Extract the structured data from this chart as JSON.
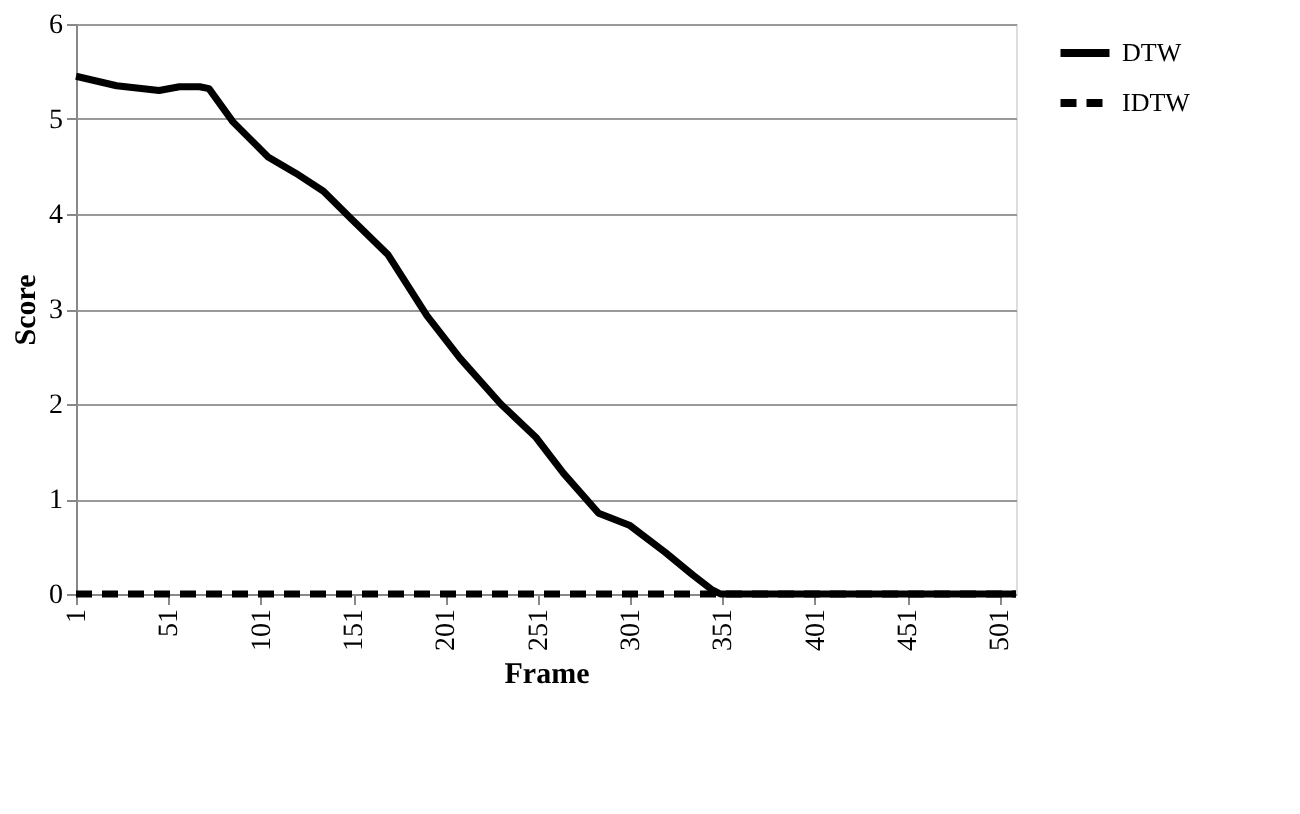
{
  "chart_data": {
    "type": "line",
    "xlabel": "Frame",
    "ylabel": "Score",
    "xlim": [
      1,
      510
    ],
    "xticks": [
      1,
      51,
      101,
      151,
      201,
      251,
      301,
      351,
      401,
      451,
      501
    ],
    "ylim": [
      0,
      6
    ],
    "yticks": [
      0,
      1,
      2,
      3,
      4,
      5,
      6
    ],
    "grid": "y",
    "legend": "right",
    "marker": "none",
    "series": [
      {
        "name": "DTW",
        "color": "#000000",
        "line_style": "solid",
        "x": [
          1,
          23,
          46,
          57,
          68,
          73,
          86,
          105,
          120,
          135,
          150,
          170,
          191,
          209,
          231,
          250,
          265,
          284,
          301,
          320,
          335,
          345,
          350,
          510
        ],
        "values": [
          5.45,
          5.35,
          5.3,
          5.34,
          5.34,
          5.32,
          4.97,
          4.6,
          4.43,
          4.24,
          3.95,
          3.57,
          2.93,
          2.48,
          2.0,
          1.65,
          1.27,
          0.85,
          0.72,
          0.44,
          0.2,
          0.05,
          0,
          0
        ]
      },
      {
        "name": "IDTW",
        "color": "#000000",
        "line_style": "dashed",
        "x": [
          1,
          510
        ],
        "values": [
          0,
          0
        ]
      }
    ]
  }
}
